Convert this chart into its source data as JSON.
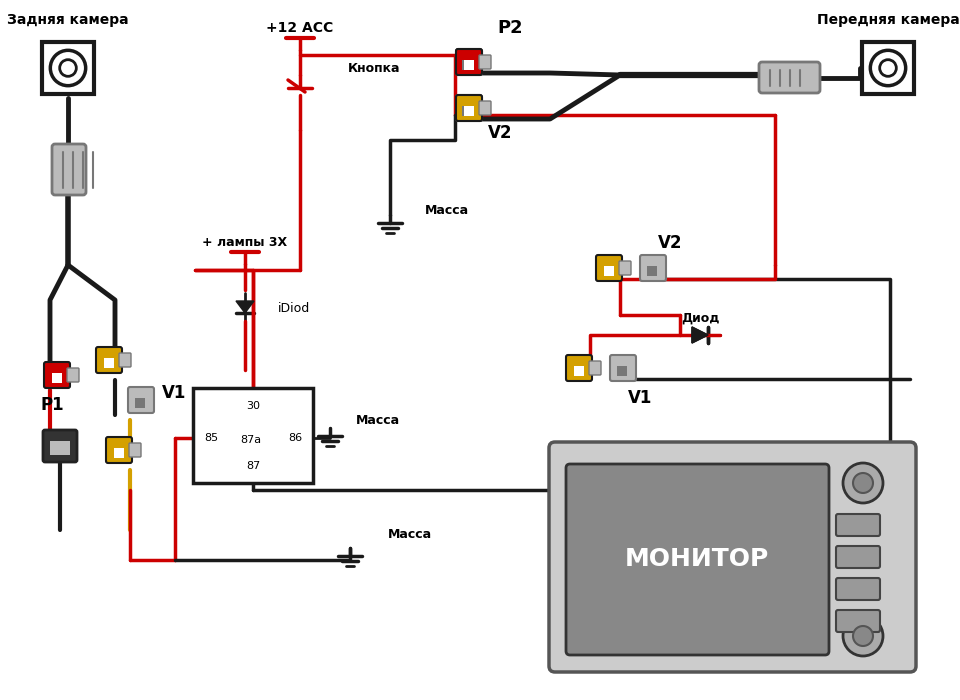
{
  "bg_color": "#ffffff",
  "black": "#1a1a1a",
  "red": "#cc0000",
  "yellow": "#d4a000",
  "gray_light": "#bbbbbb",
  "gray_dark": "#777777",
  "labels": {
    "rear_cam": "Задняя камера",
    "front_cam": "Передняя камера",
    "plus12": "+12 ACC",
    "button": "Кнопка",
    "lamp_plus": "+ лампы 3Х",
    "idiod": "iDiod",
    "massa1": "Масса",
    "massa2": "Масса",
    "massa3": "Масса",
    "diod": "Диод",
    "monitor": "МОНИТОР",
    "P1": "P1",
    "P2": "P2",
    "V1_left": "V1",
    "V2_top": "V2",
    "V1_right": "V1",
    "V2_right": "V2",
    "relay_30": "30",
    "relay_85": "85",
    "relay_86": "86",
    "relay_87a": "87a",
    "relay_87": "87"
  }
}
